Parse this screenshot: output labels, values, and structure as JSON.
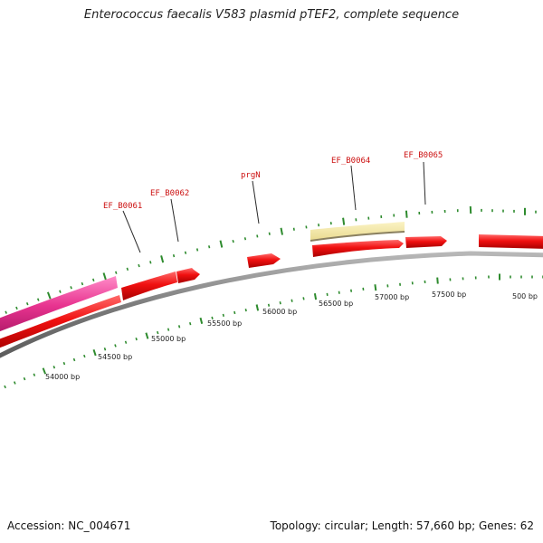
{
  "map": {
    "title": "Enterococcus faecalis V583 plasmid pTEF2, complete sequence",
    "accession": "Accession: NC_004671",
    "summary": "Topology: circular; Length: 57,660 bp; Genes: 62"
  },
  "colors": {
    "backbone": "#8c8c8c",
    "tick": "#2e8b2e",
    "gene": "#e01010",
    "highlight": "#e6368c",
    "region": "#f0e4a0",
    "label": "#cc1111"
  },
  "genes": [
    {
      "id": "EF_B0061",
      "label": "EF_B0061"
    },
    {
      "id": "EF_B0062",
      "label": "EF_B0062"
    },
    {
      "id": "prgN",
      "label": "prgN"
    },
    {
      "id": "EF_B0064",
      "label": "EF_B0064"
    },
    {
      "id": "EF_B0065",
      "label": "EF_B0065"
    }
  ],
  "bp_labels": [
    "54000 bp",
    "54500 bp",
    "55000 bp",
    "55500 bp",
    "56000 bp",
    "56500 bp",
    "57000 bp",
    "57500 bp",
    "500 bp"
  ]
}
